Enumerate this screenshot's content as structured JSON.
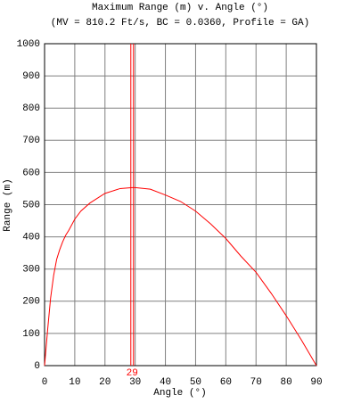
{
  "chart_data": {
    "type": "line",
    "title": "Maximum Range (m) v. Angle (°)",
    "subtitle": "(MV = 810.2 Ft/s, BC = 0.0360, Profile = GA)",
    "x_label": "Angle (°)",
    "y_label": "Range (m)",
    "x": [
      0,
      1,
      2,
      3,
      4,
      5,
      6,
      7,
      8,
      10,
      12,
      15,
      20,
      25,
      29,
      30,
      35,
      40,
      45,
      50,
      55,
      60,
      65,
      70,
      75,
      80,
      85,
      90
    ],
    "series": [
      {
        "name": "Range",
        "color": "#ff0000",
        "values": [
          0,
          110,
          210,
          280,
          330,
          360,
          385,
          405,
          420,
          455,
          480,
          505,
          535,
          550,
          553,
          553,
          548,
          530,
          510,
          480,
          440,
          395,
          340,
          290,
          225,
          155,
          80,
          0
        ]
      }
    ],
    "marker_x": 29,
    "xlim": [
      0,
      90
    ],
    "xticks": [
      0,
      10,
      20,
      30,
      40,
      50,
      60,
      70,
      80,
      90
    ],
    "ylim": [
      0,
      1000
    ],
    "yticks": [
      0,
      100,
      200,
      300,
      400,
      500,
      600,
      700,
      800,
      900,
      1000
    ],
    "grid": true
  }
}
